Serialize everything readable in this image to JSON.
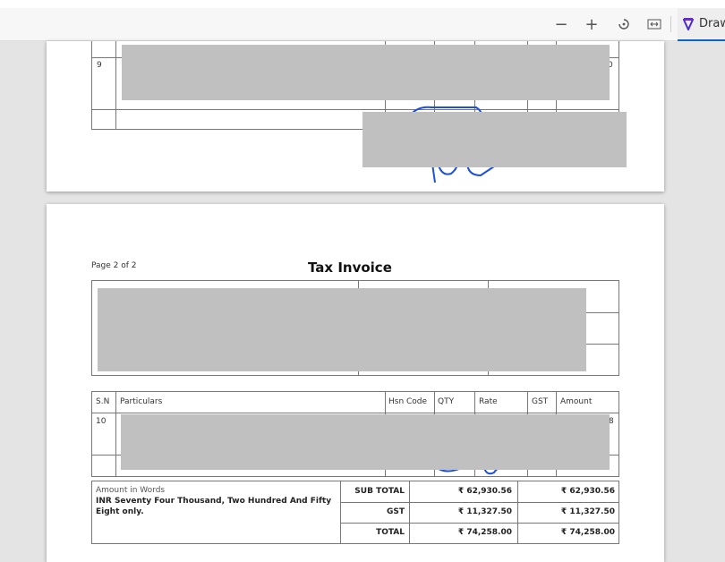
{
  "toolbar": {
    "zoom_out": "−",
    "zoom_in": "+",
    "rotate_icon": "rotate-icon",
    "fit_icon": "fit-width-icon",
    "draw_label": "Draw"
  },
  "page1": {
    "row_sn": "9",
    "row_amount_tail": "0"
  },
  "page2": {
    "page_label": "Page 2 of 2",
    "title": "Tax Invoice",
    "columns": [
      "S.N",
      "Particulars",
      "Hsn Code",
      "QTY",
      "Rate",
      "GST",
      "Amount"
    ],
    "row_sn": "10",
    "row_amount_tail": "8",
    "amount_in_words_label": "Amount in Words",
    "amount_in_words": "INR Seventy Four Thousand, Two Hundred And Fifty Eight only.",
    "totals": [
      {
        "label": "SUB TOTAL",
        "value1": "₹ 62,930.56",
        "value2": "₹ 62,930.56"
      },
      {
        "label": "GST",
        "value1": "₹ 11,327.50",
        "value2": "₹ 11,327.50"
      },
      {
        "label": "TOTAL",
        "value1": "₹ 74,258.00",
        "value2": "₹ 74,258.00"
      }
    ]
  },
  "colors": {
    "redaction": "#c0c0c0",
    "ink": "#1a4fe0",
    "accent": "#0a66c2"
  }
}
